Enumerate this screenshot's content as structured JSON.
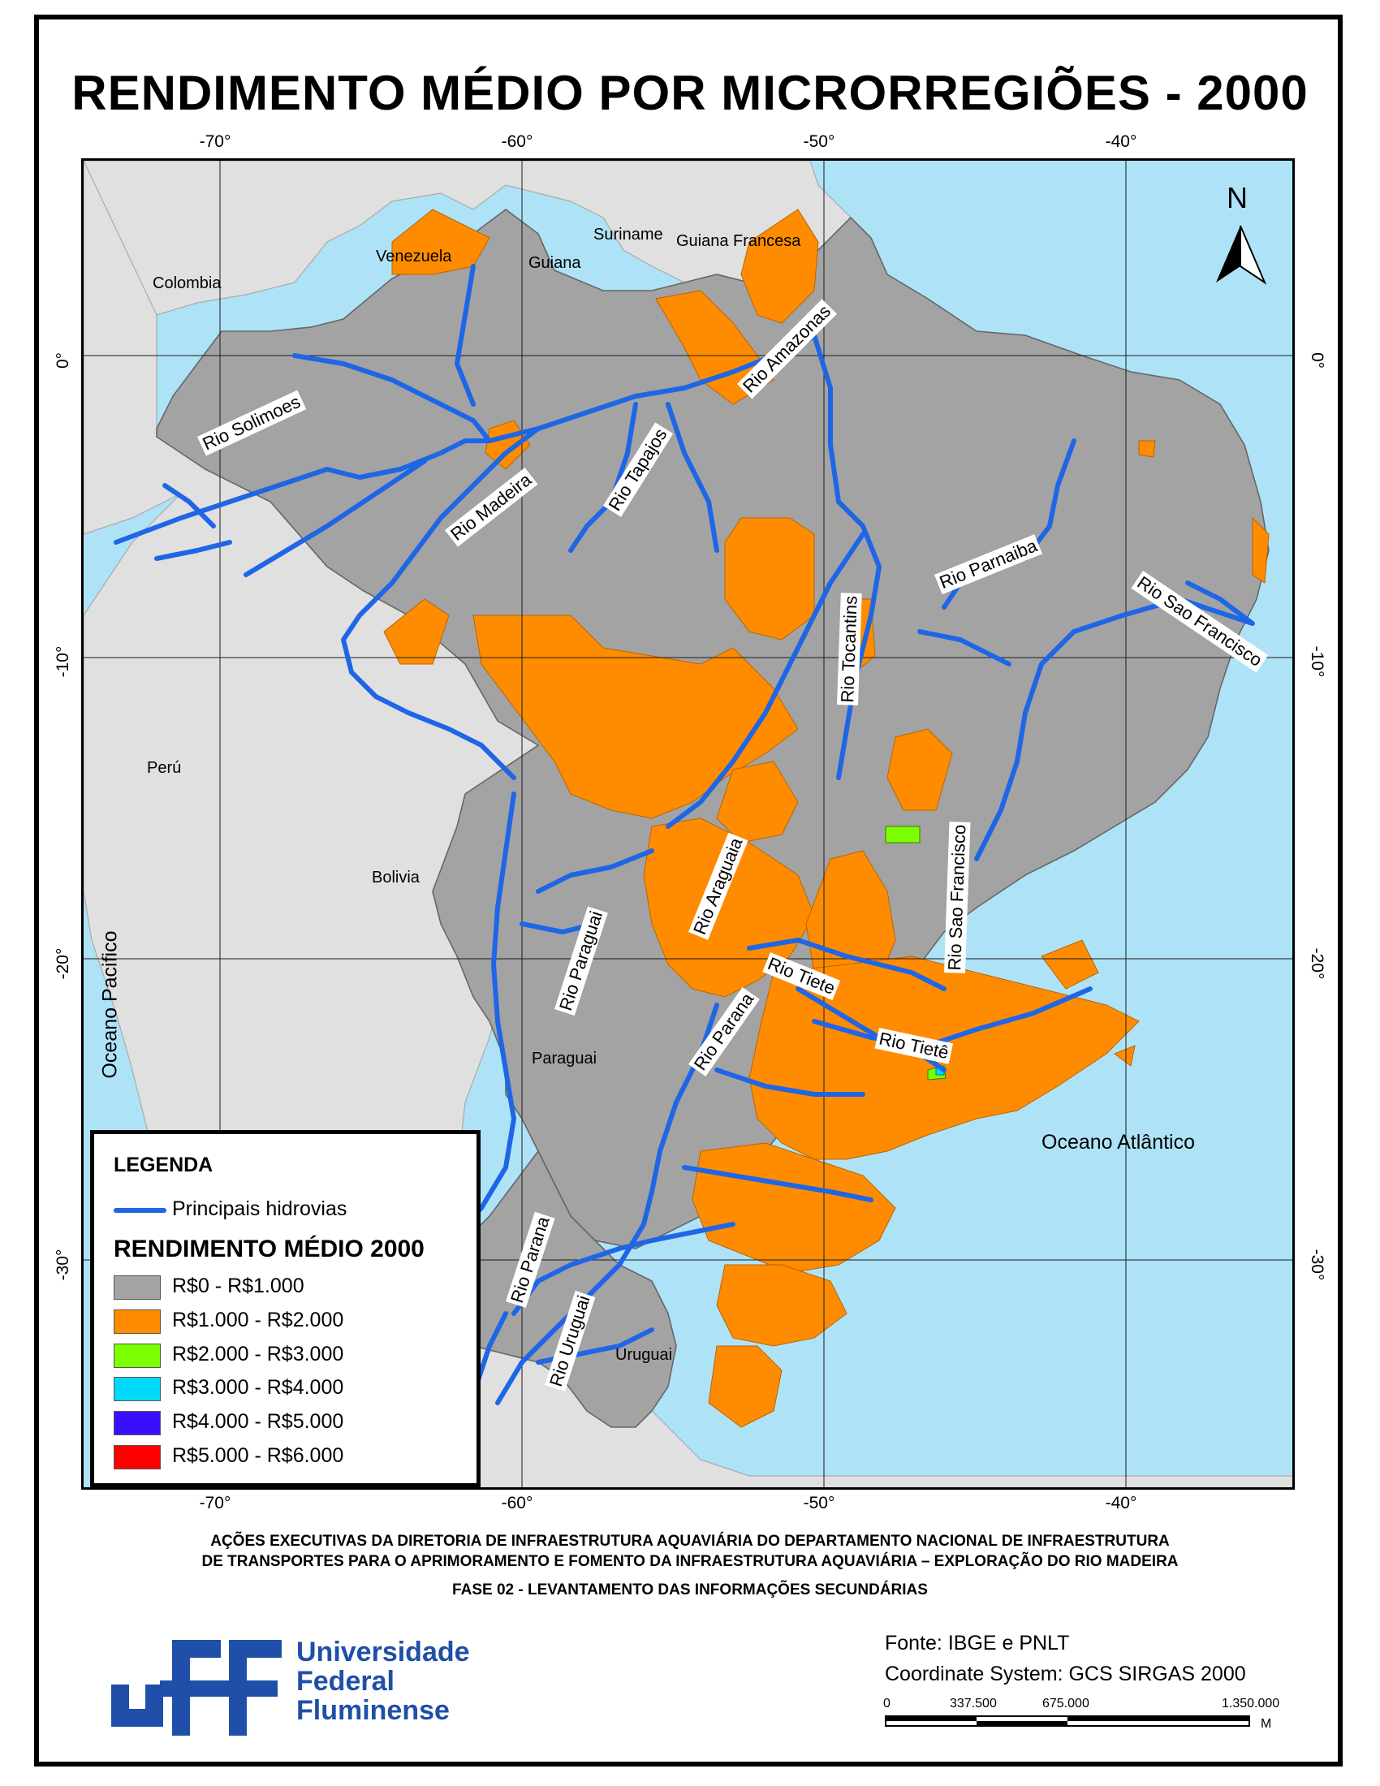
{
  "title": "RENDIMENTO MÉDIO POR MICRORREGIÕES - 2000",
  "axis": {
    "longitudes": [
      "-70°",
      "-60°",
      "-50°",
      "-40°"
    ],
    "latitudes": [
      "0°",
      "-10°",
      "-20°",
      "-30°"
    ]
  },
  "labels": {
    "countries": {
      "venezuela": "Venezuela",
      "colombia": "Colombia",
      "guiana": "Guiana",
      "suriname": "Suriname",
      "guiana_francesa": "Guiana Francesa",
      "peru": "Perú",
      "bolivia": "Bolivia",
      "paraguai": "Paraguai",
      "uruguai": "Uruguai"
    },
    "oceans": {
      "pacifico": "Oceano Pacifico",
      "atlantico": "Oceano Atlântico"
    },
    "rivers": {
      "solimoes": "Rio Solimoes",
      "madeira": "Rio Madeira",
      "tapajos": "Rio Tapajos",
      "amazonas": "Rio Amazonas",
      "tocantins": "Rio Tocantins",
      "parnaiba": "Rio Parnaiba",
      "sao_francisco_n": "Rio Sao Francisco",
      "sao_francisco_s": "Rio Sao Francisco",
      "araguaia": "Rio Araguaia",
      "paraguai": "Rio Paraguai",
      "parana_n": "Rio Parana",
      "parana_s": "Rio Parana",
      "tiete_1": "Rio Tiete",
      "tiete_2": "Rio Tietê",
      "uruguai": "Rio Uruguai"
    },
    "north": "N"
  },
  "legend": {
    "title": "LEGENDA",
    "waterway_label": "Principais hidrovias",
    "income_title": "RENDIMENTO MÉDIO 2000",
    "classes": [
      {
        "label": "R$0 - R$1.000",
        "color": "#a3a3a3"
      },
      {
        "label": "R$1.000 - R$2.000",
        "color": "#ff8c00"
      },
      {
        "label": "R$2.000 - R$3.000",
        "color": "#7cff00"
      },
      {
        "label": "R$3.000 - R$4.000",
        "color": "#00d9f7"
      },
      {
        "label": "R$4.000 - R$5.000",
        "color": "#3a0fff"
      },
      {
        "label": "R$5.000 - R$6.000",
        "color": "#ff0000"
      }
    ]
  },
  "colors": {
    "ocean": "#aee3f7",
    "foreign_land": "#e0e0e0",
    "river": "#1e66e6",
    "logo_blue": "#1f4fa8"
  },
  "footer": {
    "line1": "AÇÕES EXECUTIVAS DA DIRETORIA DE INFRAESTRUTURA AQUAVIÁRIA DO DEPARTAMENTO NACIONAL DE INFRAESTRUTURA",
    "line2": "DE TRANSPORTES PARA O APRIMORAMENTO E FOMENTO DA INFRAESTRUTURA AQUAVIÁRIA – EXPLORAÇÃO DO RIO MADEIRA",
    "line3": "FASE 02 - LEVANTAMENTO DAS INFORMAÇÕES SECUNDÁRIAS"
  },
  "institution": {
    "logo_text": "uff",
    "line1": "Universidade",
    "line2": "Federal",
    "line3": "Fluminense"
  },
  "source": {
    "fonte": "Fonte: IBGE e PNLT",
    "crs": "Coordinate System: GCS SIRGAS 2000"
  },
  "scalebar": {
    "labels": [
      "0",
      "337.500",
      "675.000",
      "1.350.000"
    ],
    "unit": "M"
  }
}
